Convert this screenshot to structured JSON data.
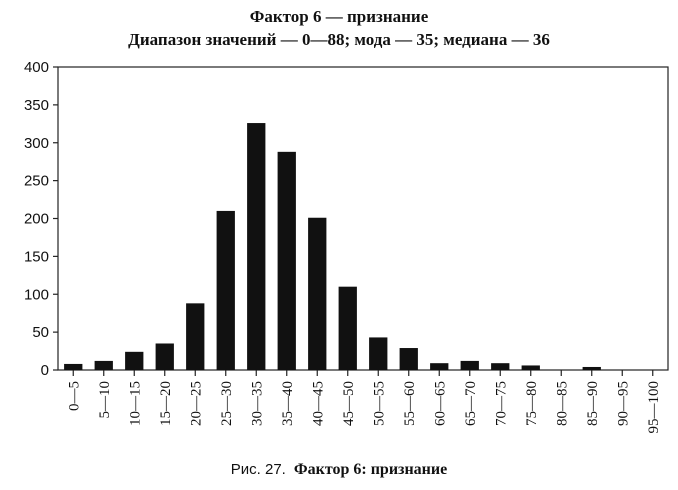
{
  "chart_data": {
    "type": "bar",
    "title": "Фактор 6 — признание",
    "subtitle": "Диапазон значений — 0—88; мода — 35; медиана — 36",
    "xlabel": "",
    "ylabel": "",
    "categories": [
      "0—5",
      "5—10",
      "10—15",
      "15—20",
      "20—25",
      "25—30",
      "30—35",
      "35—40",
      "40—45",
      "45—50",
      "50—55",
      "55—60",
      "60—65",
      "65—70",
      "70—75",
      "75—80",
      "80—85",
      "85—90",
      "90—95",
      "95—100"
    ],
    "values": [
      8,
      12,
      24,
      35,
      88,
      210,
      326,
      288,
      201,
      110,
      43,
      29,
      9,
      12,
      9,
      6,
      0,
      4,
      0,
      0
    ],
    "ylim": [
      0,
      400
    ],
    "yticks": [
      0,
      50,
      100,
      150,
      200,
      250,
      300,
      350,
      400
    ],
    "grid": false,
    "bar_color": "#111111"
  },
  "caption": {
    "figure_label": "Рис. 27.",
    "figure_title": "Фактор 6:  признание"
  }
}
